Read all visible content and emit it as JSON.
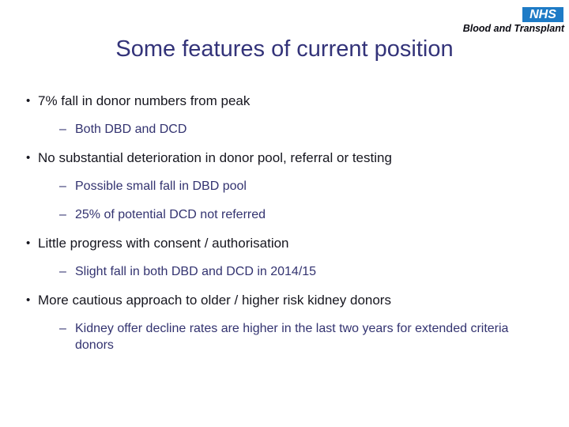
{
  "logo": {
    "mark": "NHS",
    "subtitle": "Blood and Transplant"
  },
  "slide": {
    "title": "Some features of current position",
    "bullets": [
      {
        "text": "7% fall in donor numbers from peak",
        "subs": [
          "Both DBD and DCD"
        ]
      },
      {
        "text": "No substantial deterioration in donor pool, referral or testing",
        "subs": [
          "Possible small fall in DBD pool",
          "25% of potential DCD not referred"
        ]
      },
      {
        "text": "Little progress with consent / authorisation",
        "subs": [
          "Slight fall in both DBD and DCD in 2014/15"
        ]
      },
      {
        "text": "More cautious approach to older / higher risk kidney donors",
        "subs": [
          "Kidney offer decline rates are higher in the last two years for extended criteria donors"
        ]
      }
    ]
  },
  "glyphs": {
    "bullet": "•",
    "dash": "–"
  },
  "colors": {
    "title": "#333379",
    "bullet_text": "#16161f",
    "sub_text": "#333370",
    "nhs_blue": "#1e7bc6",
    "logo_text": "#0a0a12",
    "background": "#ffffff"
  }
}
